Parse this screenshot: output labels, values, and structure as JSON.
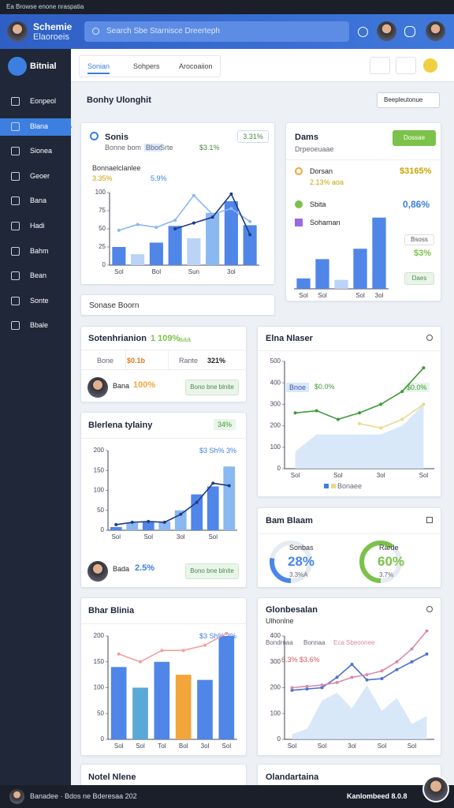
{
  "browser": {
    "tab": "Ea Browse enone nraspatia"
  },
  "header": {
    "title": "Schemie",
    "subtitle": "Elaoroeis",
    "search": "Search Sbe Starnisce Dreerteph"
  },
  "sidebar": {
    "brand": "Bitnial",
    "active": 1,
    "items": [
      "Eonpeol",
      "Blana",
      "Sionea",
      "Geoer",
      "Bana",
      "Hadi",
      "Bahm",
      "Bean",
      "Sonte",
      "Bbale"
    ]
  },
  "tabs": {
    "items": [
      "Sonian",
      "Sohpers",
      "Arocoaiion"
    ],
    "active": 0
  },
  "section": {
    "title": "Bonhy Ulonghit",
    "dropdown": "Beepleutonue"
  },
  "sales": {
    "title": "Sonis",
    "badge": "3.31%",
    "meta": [
      "Bonne bom",
      "Bbor",
      "Srte",
      "$3.1%"
    ],
    "subtitle": "Bonnaelclanlee",
    "legend": [
      "3.35%",
      "5.9%"
    ],
    "chart": {
      "ylim": [
        0,
        100
      ],
      "yticks": [
        0,
        25,
        50,
        75,
        100
      ],
      "categories": [
        "Sol",
        null,
        "Bol",
        null,
        "Sun",
        null,
        "3ol",
        null
      ],
      "bars": {
        "values": [
          25,
          15,
          31,
          54,
          37,
          72,
          88,
          55
        ],
        "colors": [
          "#4f86e8",
          "#b9d4f7",
          "#4f86e8",
          "#4f86e8",
          "#b9d4f7",
          "#8ab8f0",
          "#4f86e8",
          "#4f86e8"
        ]
      },
      "lines": [
        {
          "color": "#8ab8f0",
          "values": [
            48,
            56,
            52,
            62,
            96,
            70,
            78,
            60
          ]
        },
        {
          "color": "#1f3b8a",
          "values": [
            null,
            null,
            null,
            50,
            58,
            66,
            98,
            42
          ]
        }
      ]
    }
  },
  "deals": {
    "title": "Dams",
    "button": "Dossae",
    "subtitle": "Drpeoeuaae",
    "items": [
      {
        "name": "Dorsan",
        "value": "$3165%",
        "sub": "2.13%  aoa"
      },
      {
        "name": "Sbita",
        "value": "0,86%"
      },
      {
        "name": "Sohaman"
      }
    ],
    "side": [
      "Bsoss",
      "$3%",
      "Daes"
    ],
    "chart": {
      "ylim": [
        0,
        100
      ],
      "categories": [
        "Sol",
        "Sol",
        null,
        "Sol",
        "3ol"
      ],
      "bars": {
        "values": [
          14,
          40,
          12,
          54,
          96
        ],
        "colors": [
          "#4f86e8",
          "#4f86e8",
          "#b9d4f7",
          "#4f86e8",
          "#4f86e8"
        ]
      }
    }
  },
  "sources": {
    "title": "Sonase Boorn"
  },
  "segment": {
    "title": "Sotenhrianion",
    "value": "1 109%",
    "tail": "aaa",
    "cells": [
      "Bone",
      "$0.1b",
      "Rante",
      "321%"
    ],
    "person": "Bana",
    "person_value": "100%",
    "button": "Bono bne blnite"
  },
  "market": {
    "title": "Elna Nlaser",
    "tags": [
      "Bnoe",
      "$0.0%",
      "$0.0%"
    ],
    "legend": "Bonaee",
    "chart": {
      "ylim": [
        0,
        500
      ],
      "yticks": [
        0,
        100,
        200,
        300,
        400,
        500
      ],
      "categories": [
        "Sol",
        null,
        "Sol",
        null,
        "3ol",
        null,
        "Sol"
      ],
      "area": {
        "color": "#cfe2f7",
        "values": [
          80,
          160,
          160,
          160,
          160,
          200,
          300
        ]
      },
      "lines": [
        {
          "color": "#3f9a3a",
          "values": [
            260,
            270,
            230,
            260,
            300,
            360,
            470
          ]
        },
        {
          "color": "#e8d88a",
          "values": [
            null,
            null,
            null,
            210,
            190,
            230,
            300
          ]
        }
      ]
    }
  },
  "growth": {
    "title": "Blerlena tylainy",
    "badge": "34%",
    "tag": "$3 Sh% 3%",
    "person": "Bada",
    "person_value": "2.5%",
    "button": "Bono bne blnite",
    "chart": {
      "ylim": [
        0,
        200
      ],
      "yticks": [
        0,
        50,
        100,
        150,
        200
      ],
      "categories": [
        "Sol",
        null,
        "Sol",
        null,
        "3ol",
        null,
        "Sol",
        null
      ],
      "bars": {
        "values": [
          8,
          18,
          20,
          22,
          50,
          90,
          110,
          160
        ],
        "colors": [
          "#4f86e8",
          "#8ab8f0",
          "#4f86e8",
          "#8ab8f0",
          "#8ab8f0",
          "#4f86e8",
          "#4f86e8",
          "#8ab8f0"
        ]
      },
      "lines": [
        {
          "color": "#1f3b8a",
          "values": [
            14,
            20,
            22,
            20,
            40,
            70,
            118,
            112
          ]
        }
      ]
    }
  },
  "mix": {
    "title": "Bam Blaam",
    "donuts": [
      {
        "name": "Sonbas",
        "value": 28,
        "value_label": "28%",
        "sub": "3.3%A",
        "color": "#4a86e8"
      },
      {
        "name": "Rarde",
        "value": 60,
        "value_label": "60%",
        "sub": "3.7%",
        "color": "#7cc24a"
      }
    ]
  },
  "orders": {
    "title": "Bhar Blinia",
    "tag": "$3 Sh% 3%",
    "chart": {
      "ylim": [
        0,
        200
      ],
      "yticks": [
        0,
        50,
        100,
        150,
        200
      ],
      "categories": [
        "Sol",
        "Sol",
        "Tol",
        "Bol",
        "3ol",
        "Sol"
      ],
      "bars": {
        "values": [
          140,
          100,
          150,
          125,
          115,
          200
        ],
        "colors": [
          "#4f86e8",
          "#5aa8d8",
          "#4f86e8",
          "#f2a53a",
          "#4f86e8",
          "#4f86e8"
        ]
      },
      "lines": [
        {
          "color": "#f0a0a0",
          "values": [
            165,
            150,
            172,
            172,
            182,
            205
          ]
        }
      ]
    }
  },
  "global": {
    "title": "Glonbesalan",
    "subtitle": "Ulhonlne",
    "legend": [
      "Bondrnaa",
      "Bonnaa",
      "Eca Sbeoonee"
    ],
    "tag": "6.3%  $3.6%",
    "chart": {
      "ylim": [
        0,
        400
      ],
      "yticks": [
        0,
        100,
        200,
        300,
        400
      ],
      "categories": [
        "Sol",
        null,
        "Sol",
        null,
        "3ol",
        null,
        "Sol",
        null,
        "Sol",
        null
      ],
      "area": {
        "color": "#cfe2f7",
        "values": [
          20,
          40,
          150,
          180,
          120,
          210,
          110,
          160,
          60,
          90
        ]
      },
      "lines": [
        {
          "color": "#4f6fd0",
          "values": [
            190,
            195,
            200,
            240,
            290,
            230,
            235,
            270,
            300,
            330
          ]
        },
        {
          "color": "#d88aa8",
          "values": [
            200,
            205,
            210,
            220,
            240,
            250,
            265,
            300,
            350,
            420
          ]
        }
      ]
    }
  },
  "bottom_cards": [
    "Notel Nlene",
    "Olandartaina"
  ],
  "footer": {
    "left": "Banadee  ·  Bdos ne Bderesaa 202",
    "right": "Kanlombeed 8.0.8"
  }
}
